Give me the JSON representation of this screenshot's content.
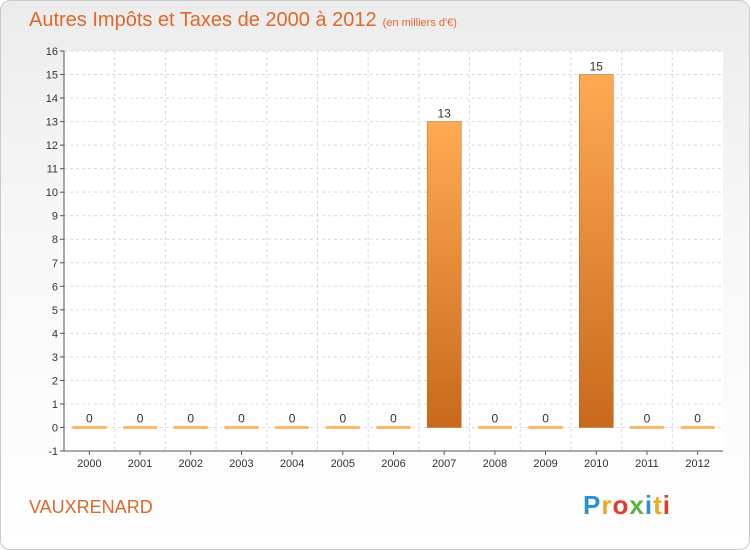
{
  "title": "Autres Impôts et Taxes de 2000 à 2012",
  "unit": "(en milliers d'€)",
  "place": "VAUXRENARD",
  "logo": {
    "letters": [
      "P",
      "r",
      "o",
      "x",
      "i",
      "t",
      "i"
    ],
    "colors": [
      "#2f8fd6",
      "#f0a81e",
      "#e13b2f",
      "#5bb33a",
      "#2f8fd6",
      "#f0a81e",
      "#e13b2f"
    ]
  },
  "colors": {
    "accent": "#e0672a",
    "bar_light": "#ffaa55",
    "bar_dark": "#c8691c",
    "grid": "#d9d9d9"
  },
  "chart_data": {
    "type": "bar",
    "categories": [
      "2000",
      "2001",
      "2002",
      "2003",
      "2004",
      "2005",
      "2006",
      "2007",
      "2008",
      "2009",
      "2010",
      "2011",
      "2012"
    ],
    "values": [
      0,
      0,
      0,
      0,
      0,
      0,
      0,
      13,
      0,
      0,
      15,
      0,
      0
    ],
    "value_labels": [
      "0",
      "0",
      "0",
      "0",
      "0",
      "0",
      "0",
      "13",
      "0",
      "0",
      "15",
      "0",
      "0"
    ],
    "yticks": [
      "-1",
      "0",
      "1",
      "2",
      "3",
      "4",
      "5",
      "6",
      "7",
      "8",
      "9",
      "10",
      "11",
      "12",
      "13",
      "14",
      "15",
      "16"
    ],
    "ylim": [
      -1,
      16
    ],
    "grid": true
  }
}
